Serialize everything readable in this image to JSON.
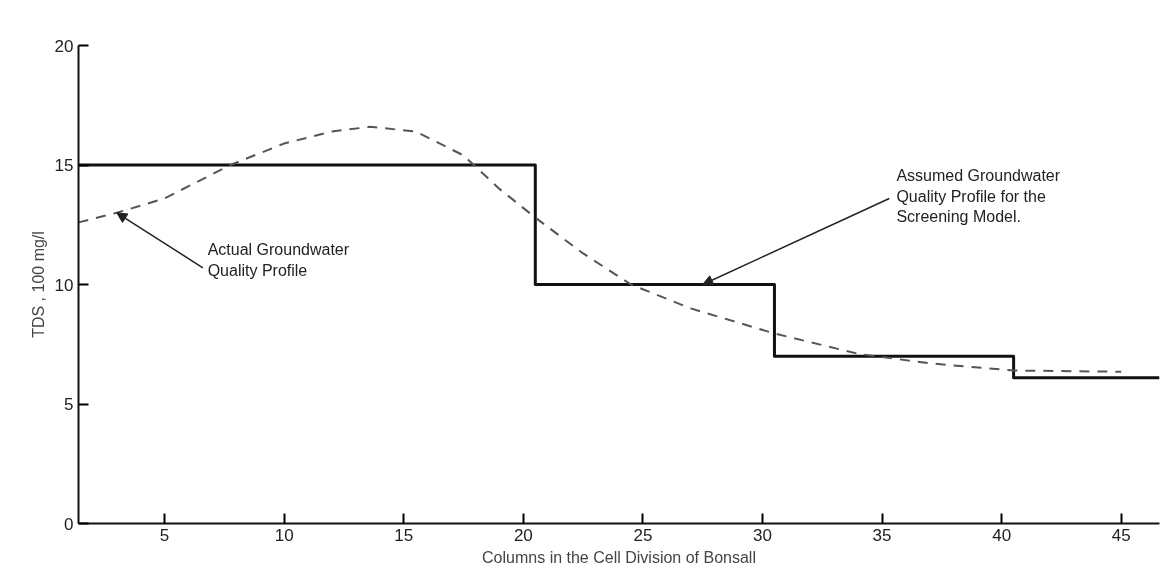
{
  "chart_data": {
    "type": "line",
    "xlabel": "Columns in the Cell Division of Bonsall",
    "ylabel": "TDS , 100 mg/l",
    "xlim": [
      1.4,
      46.6
    ],
    "ylim": [
      0,
      20
    ],
    "xticks": [
      5,
      10,
      15,
      20,
      25,
      30,
      35,
      40,
      45
    ],
    "yticks": [
      0,
      5,
      10,
      15,
      20
    ],
    "grid": false,
    "series": [
      {
        "type": "step",
        "color": "#111111",
        "line_style": "solid",
        "x": [
          1.4,
          20.5,
          30.5,
          40.5,
          46.6
        ],
        "values": [
          15,
          10,
          7,
          6.1,
          6.1
        ]
      },
      {
        "color": "#555555",
        "line_style": "dashed",
        "x": [
          1.4,
          3,
          5,
          7.75,
          10,
          12,
          13.6,
          15.5,
          17.5,
          19,
          20.5,
          22.5,
          24.5,
          27,
          30.5,
          34,
          37,
          40.5,
          45
        ],
        "values": [
          12.6,
          13.0,
          13.6,
          15.0,
          15.9,
          16.4,
          16.6,
          16.4,
          15.4,
          14.0,
          12.8,
          11.3,
          10.0,
          9.0,
          7.95,
          7.1,
          6.7,
          6.4,
          6.35
        ]
      }
    ],
    "annotations": [
      {
        "text": "Actual Groundwater\nQuality Profile",
        "x": 3,
        "y": 13.0
      },
      {
        "text": "Assumed Groundwater\nQuality Profile for the\nScreening Model.",
        "x": 27.5,
        "y": 10
      }
    ]
  }
}
